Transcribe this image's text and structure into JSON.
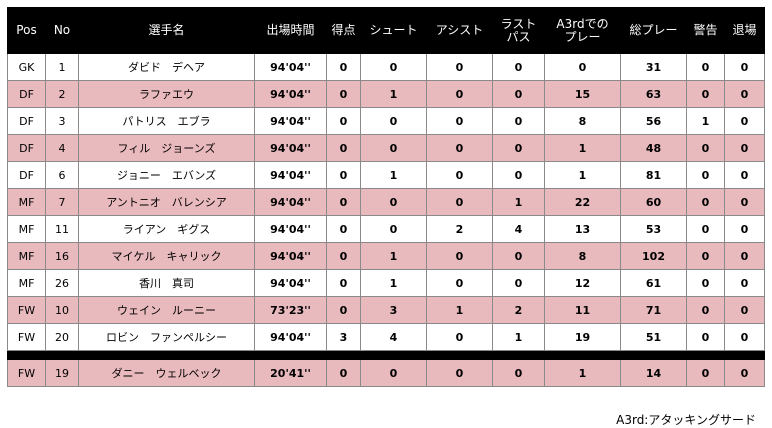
{
  "headers": {
    "pos": "Pos",
    "no": "No",
    "name": "選手名",
    "time": "出場時間",
    "goals": "得点",
    "shots": "シュート",
    "assists": "アシスト",
    "last_pass_1": "ラスト",
    "last_pass_2": "パス",
    "a3rd_1": "A3rdでの",
    "a3rd_2": "プレー",
    "total": "総プレー",
    "warnings": "警告",
    "sendoffs": "退場"
  },
  "rows": [
    {
      "pos": "GK",
      "no": "1",
      "name": "ダビド　デヘア",
      "time": "94'04''",
      "goals": "0",
      "shots": "0",
      "assists": "0",
      "last_pass": "0",
      "a3rd": "0",
      "total": "31",
      "warnings": "0",
      "sendoffs": "0"
    },
    {
      "pos": "DF",
      "no": "2",
      "name": "ラファエウ",
      "time": "94'04''",
      "goals": "0",
      "shots": "1",
      "assists": "0",
      "last_pass": "0",
      "a3rd": "15",
      "total": "63",
      "warnings": "0",
      "sendoffs": "0"
    },
    {
      "pos": "DF",
      "no": "3",
      "name": "パトリス　エブラ",
      "time": "94'04''",
      "goals": "0",
      "shots": "0",
      "assists": "0",
      "last_pass": "0",
      "a3rd": "8",
      "total": "56",
      "warnings": "1",
      "sendoffs": "0"
    },
    {
      "pos": "DF",
      "no": "4",
      "name": "フィル　ジョーンズ",
      "time": "94'04''",
      "goals": "0",
      "shots": "0",
      "assists": "0",
      "last_pass": "0",
      "a3rd": "1",
      "total": "48",
      "warnings": "0",
      "sendoffs": "0"
    },
    {
      "pos": "DF",
      "no": "6",
      "name": "ジョニー　エバンズ",
      "time": "94'04''",
      "goals": "0",
      "shots": "1",
      "assists": "0",
      "last_pass": "0",
      "a3rd": "1",
      "total": "81",
      "warnings": "0",
      "sendoffs": "0"
    },
    {
      "pos": "MF",
      "no": "7",
      "name": "アントニオ　バレンシア",
      "time": "94'04''",
      "goals": "0",
      "shots": "0",
      "assists": "0",
      "last_pass": "1",
      "a3rd": "22",
      "total": "60",
      "warnings": "0",
      "sendoffs": "0"
    },
    {
      "pos": "MF",
      "no": "11",
      "name": "ライアン　ギグス",
      "time": "94'04''",
      "goals": "0",
      "shots": "0",
      "assists": "2",
      "last_pass": "4",
      "a3rd": "13",
      "total": "53",
      "warnings": "0",
      "sendoffs": "0"
    },
    {
      "pos": "MF",
      "no": "16",
      "name": "マイケル　キャリック",
      "time": "94'04''",
      "goals": "0",
      "shots": "1",
      "assists": "0",
      "last_pass": "0",
      "a3rd": "8",
      "total": "102",
      "warnings": "0",
      "sendoffs": "0"
    },
    {
      "pos": "MF",
      "no": "26",
      "name": "香川　真司",
      "time": "94'04''",
      "goals": "0",
      "shots": "1",
      "assists": "0",
      "last_pass": "0",
      "a3rd": "12",
      "total": "61",
      "warnings": "0",
      "sendoffs": "0"
    },
    {
      "pos": "FW",
      "no": "10",
      "name": "ウェイン　ルーニー",
      "time": "73'23''",
      "goals": "0",
      "shots": "3",
      "assists": "1",
      "last_pass": "2",
      "a3rd": "11",
      "total": "71",
      "warnings": "0",
      "sendoffs": "0"
    },
    {
      "pos": "FW",
      "no": "20",
      "name": "ロビン　ファンペルシー",
      "time": "94'04''",
      "goals": "3",
      "shots": "4",
      "assists": "0",
      "last_pass": "1",
      "a3rd": "19",
      "total": "51",
      "warnings": "0",
      "sendoffs": "0"
    }
  ],
  "subs": [
    {
      "pos": "FW",
      "no": "19",
      "name": "ダニー　ウェルベック",
      "time": "20'41''",
      "goals": "0",
      "shots": "0",
      "assists": "0",
      "last_pass": "0",
      "a3rd": "1",
      "total": "14",
      "warnings": "0",
      "sendoffs": "0"
    }
  ],
  "footnote": "A3rd:アタッキングサード",
  "colors": {
    "header_bg": "#000000",
    "header_text": "#ffffff",
    "row_alt": "#e8b9bd",
    "row_base": "#ffffff"
  }
}
